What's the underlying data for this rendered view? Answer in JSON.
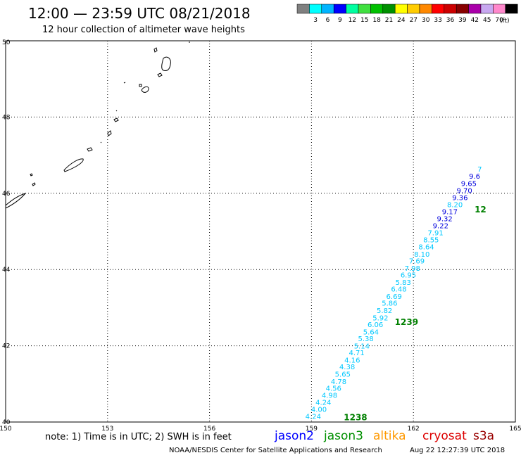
{
  "header": {
    "title": "12:00 — 23:59 UTC 08/21/2018",
    "subtitle": "12 hour collection of altimeter wave heights"
  },
  "color_scale": {
    "unit": "(ft)",
    "bins": [
      {
        "color": "#808080",
        "label": ""
      },
      {
        "color": "#00ffff",
        "label": "3"
      },
      {
        "color": "#00b4ff",
        "label": "6"
      },
      {
        "color": "#0000ff",
        "label": "9"
      },
      {
        "color": "#00ffa0",
        "label": "12"
      },
      {
        "color": "#40e040",
        "label": "15"
      },
      {
        "color": "#00c000",
        "label": "18"
      },
      {
        "color": "#009000",
        "label": "21"
      },
      {
        "color": "#ffff00",
        "label": "24"
      },
      {
        "color": "#ffcc00",
        "label": "27"
      },
      {
        "color": "#ff8800",
        "label": "30"
      },
      {
        "color": "#ff0000",
        "label": "33"
      },
      {
        "color": "#cc0000",
        "label": "36"
      },
      {
        "color": "#880000",
        "label": "39"
      },
      {
        "color": "#aa00aa",
        "label": "42"
      },
      {
        "color": "#c8a8f0",
        "label": "45"
      },
      {
        "color": "#ff88cc",
        "label": "70"
      },
      {
        "color": "#000000",
        "label": ""
      }
    ]
  },
  "map": {
    "lon_range": [
      150,
      165
    ],
    "lat_range": [
      40,
      50
    ],
    "lon_ticks": [
      {
        "value": 150,
        "label": "150"
      },
      {
        "value": 153,
        "label": "153"
      },
      {
        "value": 156,
        "label": "156"
      },
      {
        "value": 159,
        "label": "159"
      },
      {
        "value": 162,
        "label": "162"
      },
      {
        "value": 165,
        "label": "165"
      }
    ],
    "lat_ticks": [
      {
        "value": 40,
        "label": "40"
      },
      {
        "value": 42,
        "label": "42"
      },
      {
        "value": 44,
        "label": "44"
      },
      {
        "value": 46,
        "label": "46"
      },
      {
        "value": 48,
        "label": "48"
      },
      {
        "value": 50,
        "label": "50"
      }
    ],
    "grid": "dotted"
  },
  "observations": [
    {
      "lon": 159.05,
      "lat": 40.08,
      "text": "4.24",
      "color": "#00c8ff"
    },
    {
      "lon": 159.22,
      "lat": 40.27,
      "text": "4.00",
      "color": "#00c8ff"
    },
    {
      "lon": 159.35,
      "lat": 40.45,
      "text": "4.24",
      "color": "#00c8ff"
    },
    {
      "lon": 159.53,
      "lat": 40.64,
      "text": "4.98",
      "color": "#00c8ff"
    },
    {
      "lon": 159.65,
      "lat": 40.82,
      "text": "4.56",
      "color": "#00c8ff"
    },
    {
      "lon": 159.8,
      "lat": 41.0,
      "text": "4.78",
      "color": "#00c8ff"
    },
    {
      "lon": 159.92,
      "lat": 41.19,
      "text": "5.65",
      "color": "#00c8ff"
    },
    {
      "lon": 160.05,
      "lat": 41.38,
      "text": "4.38",
      "color": "#00c8ff"
    },
    {
      "lon": 160.2,
      "lat": 41.56,
      "text": "4.16",
      "color": "#00c8ff"
    },
    {
      "lon": 160.33,
      "lat": 41.75,
      "text": "4.71",
      "color": "#00c8ff"
    },
    {
      "lon": 160.48,
      "lat": 41.93,
      "text": "5.14",
      "color": "#00c8ff"
    },
    {
      "lon": 160.6,
      "lat": 42.12,
      "text": "5.38",
      "color": "#00c8ff"
    },
    {
      "lon": 160.75,
      "lat": 42.3,
      "text": "5.64",
      "color": "#00c8ff"
    },
    {
      "lon": 160.88,
      "lat": 42.49,
      "text": "6.06",
      "color": "#00c8ff"
    },
    {
      "lon": 161.03,
      "lat": 42.67,
      "text": "5.92",
      "color": "#00c8ff"
    },
    {
      "lon": 161.15,
      "lat": 42.86,
      "text": "5.82",
      "color": "#00c8ff"
    },
    {
      "lon": 161.3,
      "lat": 43.05,
      "text": "5.86",
      "color": "#00c8ff"
    },
    {
      "lon": 161.43,
      "lat": 43.23,
      "text": "6.69",
      "color": "#00c8ff"
    },
    {
      "lon": 161.57,
      "lat": 43.42,
      "text": "6.48",
      "color": "#00c8ff"
    },
    {
      "lon": 161.7,
      "lat": 43.6,
      "text": "5.83",
      "color": "#00c8ff"
    },
    {
      "lon": 161.85,
      "lat": 43.79,
      "text": "6.95",
      "color": "#00c8ff"
    },
    {
      "lon": 161.97,
      "lat": 43.97,
      "text": "7.98",
      "color": "#00c8ff"
    },
    {
      "lon": 162.1,
      "lat": 44.16,
      "text": "7.69",
      "color": "#00c8ff"
    },
    {
      "lon": 162.25,
      "lat": 44.34,
      "text": "8.10",
      "color": "#00c8ff"
    },
    {
      "lon": 162.38,
      "lat": 44.53,
      "text": "8.64",
      "color": "#00c8ff"
    },
    {
      "lon": 162.52,
      "lat": 44.71,
      "text": "8.55",
      "color": "#00c8ff"
    },
    {
      "lon": 162.65,
      "lat": 44.9,
      "text": "7.91",
      "color": "#00c8ff"
    },
    {
      "lon": 162.8,
      "lat": 45.08,
      "text": "9.22",
      "color": "#0000dd"
    },
    {
      "lon": 162.92,
      "lat": 45.27,
      "text": "9.32",
      "color": "#0000dd"
    },
    {
      "lon": 163.07,
      "lat": 45.45,
      "text": "9.17",
      "color": "#0000dd"
    },
    {
      "lon": 163.22,
      "lat": 45.64,
      "text": "8.20",
      "color": "#00c8ff"
    },
    {
      "lon": 163.37,
      "lat": 45.82,
      "text": "9.36",
      "color": "#0000dd"
    },
    {
      "lon": 163.5,
      "lat": 46.01,
      "text": "9.70",
      "color": "#0000dd"
    },
    {
      "lon": 163.63,
      "lat": 46.19,
      "text": "9.65",
      "color": "#0000dd"
    },
    {
      "lon": 163.8,
      "lat": 46.38,
      "text": "9.6",
      "color": "#0000dd"
    },
    {
      "lon": 163.95,
      "lat": 46.57,
      "text": "7",
      "color": "#00c8ff"
    }
  ],
  "pass_labels": [
    {
      "lon": 159.95,
      "lat": 40.05,
      "text": "1238"
    },
    {
      "lon": 161.45,
      "lat": 42.55,
      "text": "1239"
    },
    {
      "lon": 163.8,
      "lat": 45.5,
      "text": "12"
    }
  ],
  "footer": {
    "note": "note: 1) Time is in UTC; 2) SWH is in feet",
    "satellites": [
      {
        "name": "jason2",
        "color": "#0000ff"
      },
      {
        "name": "jason3",
        "color": "#009000"
      },
      {
        "name": "altika",
        "color": "#ff9900"
      },
      {
        "name": "cryosat",
        "color": "#dd0000"
      },
      {
        "name": "s3a",
        "color": "#990000"
      }
    ],
    "credit": "NOAA/NESDIS Center for Satellite Applications and Research",
    "timestamp": "Aug 22 12:27:39 UTC 2018"
  }
}
